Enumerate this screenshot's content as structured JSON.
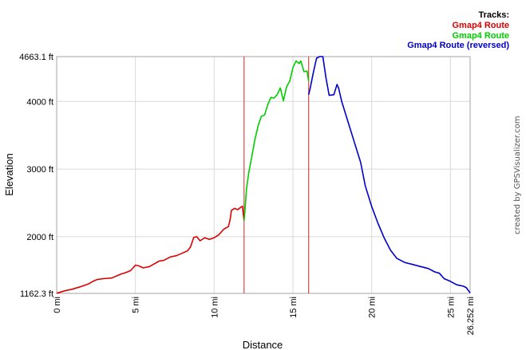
{
  "credit": "created by GPSVisualizer.com",
  "chart_data": {
    "type": "line",
    "xlabel": "Distance",
    "ylabel": "Elevation",
    "x_unit": "mi",
    "y_unit": "ft",
    "xlim": [
      0,
      26.252
    ],
    "ylim": [
      1162.3,
      4663.1
    ],
    "x_ticks": [
      {
        "value": 0,
        "label": "0 mi"
      },
      {
        "value": 5,
        "label": "5 mi"
      },
      {
        "value": 10,
        "label": "10 mi"
      },
      {
        "value": 15,
        "label": "15 mi"
      },
      {
        "value": 20,
        "label": "20 mi"
      },
      {
        "value": 25,
        "label": "25 mi"
      },
      {
        "value": 26.252,
        "label": "26.252 mi"
      }
    ],
    "y_ticks": [
      {
        "value": 1162.3,
        "label": "1162.3 ft"
      },
      {
        "value": 2000,
        "label": "2000 ft"
      },
      {
        "value": 3000,
        "label": "3000 ft"
      },
      {
        "value": 4000,
        "label": "4000 ft"
      },
      {
        "value": 4663.1,
        "label": "4663.1 ft"
      }
    ],
    "grid": true,
    "legend": {
      "title": "Tracks:",
      "position": "top-right"
    },
    "dividers_x": [
      11.9,
      16.0
    ],
    "divider_color": "#dd2222",
    "series": [
      {
        "name": "Gmap4 Route",
        "color": "#dd0000",
        "points": [
          [
            0,
            1165
          ],
          [
            0.5,
            1200
          ],
          [
            1.0,
            1225
          ],
          [
            1.5,
            1260
          ],
          [
            2.0,
            1300
          ],
          [
            2.3,
            1340
          ],
          [
            2.6,
            1370
          ],
          [
            3.0,
            1380
          ],
          [
            3.5,
            1390
          ],
          [
            3.8,
            1420
          ],
          [
            4.1,
            1450
          ],
          [
            4.4,
            1470
          ],
          [
            4.7,
            1500
          ],
          [
            5.0,
            1580
          ],
          [
            5.2,
            1570
          ],
          [
            5.5,
            1540
          ],
          [
            5.9,
            1560
          ],
          [
            6.2,
            1600
          ],
          [
            6.5,
            1640
          ],
          [
            6.8,
            1650
          ],
          [
            7.2,
            1700
          ],
          [
            7.6,
            1720
          ],
          [
            8.0,
            1760
          ],
          [
            8.3,
            1790
          ],
          [
            8.5,
            1850
          ],
          [
            8.7,
            1990
          ],
          [
            8.9,
            2000
          ],
          [
            9.1,
            1940
          ],
          [
            9.4,
            1985
          ],
          [
            9.7,
            1960
          ],
          [
            10.0,
            1985
          ],
          [
            10.3,
            2030
          ],
          [
            10.6,
            2110
          ],
          [
            10.9,
            2150
          ],
          [
            11.0,
            2240
          ],
          [
            11.1,
            2390
          ],
          [
            11.3,
            2420
          ],
          [
            11.5,
            2400
          ],
          [
            11.7,
            2440
          ],
          [
            11.8,
            2450
          ],
          [
            11.85,
            2330
          ],
          [
            11.9,
            2240
          ]
        ]
      },
      {
        "name": "Gmap4 Route",
        "color": "#00cc00",
        "points": [
          [
            11.9,
            2240
          ],
          [
            11.95,
            2370
          ],
          [
            12.05,
            2700
          ],
          [
            12.2,
            2950
          ],
          [
            12.4,
            3200
          ],
          [
            12.6,
            3450
          ],
          [
            12.8,
            3650
          ],
          [
            13.0,
            3780
          ],
          [
            13.2,
            3800
          ],
          [
            13.4,
            3950
          ],
          [
            13.6,
            4060
          ],
          [
            13.8,
            4050
          ],
          [
            14.0,
            4100
          ],
          [
            14.2,
            4200
          ],
          [
            14.4,
            4010
          ],
          [
            14.6,
            4220
          ],
          [
            14.8,
            4300
          ],
          [
            15.0,
            4500
          ],
          [
            15.2,
            4600
          ],
          [
            15.4,
            4560
          ],
          [
            15.5,
            4600
          ],
          [
            15.7,
            4440
          ],
          [
            15.9,
            4450
          ],
          [
            16.0,
            4300
          ]
        ]
      },
      {
        "name": "Gmap4 Route (reversed)",
        "color": "#0000cc",
        "points": [
          [
            16.0,
            4100
          ],
          [
            16.1,
            4200
          ],
          [
            16.3,
            4430
          ],
          [
            16.5,
            4640
          ],
          [
            16.7,
            4663
          ],
          [
            16.9,
            4663
          ],
          [
            17.1,
            4350
          ],
          [
            17.3,
            4090
          ],
          [
            17.6,
            4100
          ],
          [
            17.8,
            4250
          ],
          [
            17.9,
            4200
          ],
          [
            18.1,
            4000
          ],
          [
            18.5,
            3700
          ],
          [
            18.9,
            3400
          ],
          [
            19.3,
            3100
          ],
          [
            19.6,
            2750
          ],
          [
            20.0,
            2450
          ],
          [
            20.4,
            2200
          ],
          [
            20.8,
            1980
          ],
          [
            21.2,
            1800
          ],
          [
            21.6,
            1680
          ],
          [
            22.1,
            1620
          ],
          [
            22.6,
            1590
          ],
          [
            23.1,
            1560
          ],
          [
            23.6,
            1530
          ],
          [
            24.0,
            1480
          ],
          [
            24.3,
            1460
          ],
          [
            24.6,
            1380
          ],
          [
            25.0,
            1340
          ],
          [
            25.4,
            1290
          ],
          [
            25.8,
            1270
          ],
          [
            26.0,
            1250
          ],
          [
            26.252,
            1170
          ]
        ]
      }
    ]
  }
}
